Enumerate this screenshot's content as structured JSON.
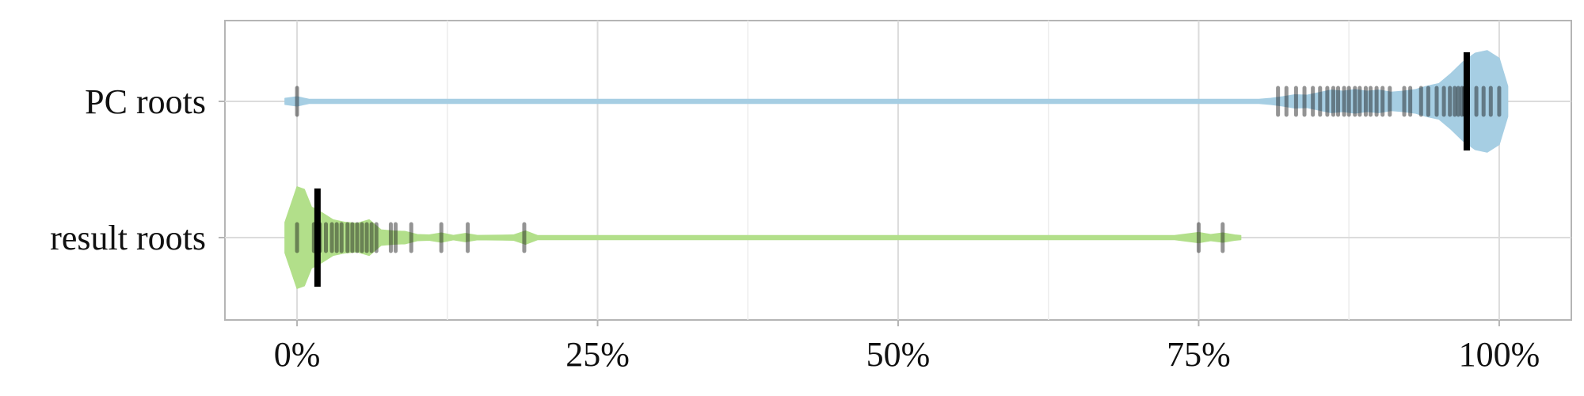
{
  "chart_data": {
    "type": "violin",
    "categories": [
      "PC roots",
      "result roots"
    ],
    "x_ticks": [
      "0%",
      "25%",
      "50%",
      "75%",
      "100%"
    ],
    "x_tick_values": [
      0,
      25,
      50,
      75,
      100
    ],
    "xlim": [
      -6,
      106
    ],
    "grid": true,
    "legend": "none",
    "xlabel": "",
    "ylabel": "",
    "title": "",
    "series": [
      {
        "category": "PC roots",
        "color": "#a6cee3",
        "median": 97.3,
        "range": [
          -1,
          100.7
        ],
        "density": [
          [
            -1,
            0.06
          ],
          [
            0,
            0.09
          ],
          [
            1,
            0.03
          ],
          [
            2,
            0.02
          ],
          [
            80,
            0.02
          ],
          [
            81,
            0.06
          ],
          [
            82,
            0.09
          ],
          [
            83,
            0.13
          ],
          [
            84,
            0.12
          ],
          [
            85,
            0.17
          ],
          [
            86,
            0.22
          ],
          [
            87,
            0.2
          ],
          [
            88,
            0.23
          ],
          [
            89,
            0.2
          ],
          [
            90,
            0.22
          ],
          [
            91,
            0.18
          ],
          [
            92,
            0.2
          ],
          [
            93,
            0.23
          ],
          [
            94,
            0.3
          ],
          [
            95,
            0.35
          ],
          [
            96,
            0.55
          ],
          [
            97,
            0.78
          ],
          [
            98,
            0.95
          ],
          [
            99,
            1.0
          ],
          [
            100,
            0.85
          ],
          [
            100.7,
            0.3
          ]
        ],
        "points": [
          0.0,
          81.6,
          82.3,
          83.1,
          83.8,
          84.5,
          85.1,
          85.7,
          86.2,
          86.6,
          87.1,
          87.5,
          88.0,
          88.4,
          88.9,
          89.3,
          89.8,
          90.3,
          90.9,
          92.1,
          92.6,
          93.5,
          94.1,
          94.8,
          95.4,
          95.9,
          96.3,
          96.6,
          96.9,
          97.1,
          97.4,
          98.1,
          98.7,
          99.3,
          100.0
        ]
      },
      {
        "category": "result roots",
        "color": "#b2df8a",
        "median": 1.7,
        "range": [
          -1,
          78.5
        ],
        "density": [
          [
            -1,
            0.3
          ],
          [
            0,
            1.0
          ],
          [
            0.6,
            0.95
          ],
          [
            1.2,
            0.6
          ],
          [
            2,
            0.5
          ],
          [
            3,
            0.35
          ],
          [
            4,
            0.3
          ],
          [
            5,
            0.28
          ],
          [
            6,
            0.35
          ],
          [
            7,
            0.15
          ],
          [
            8,
            0.13
          ],
          [
            9,
            0.12
          ],
          [
            10,
            0.06
          ],
          [
            11,
            0.05
          ],
          [
            12,
            0.09
          ],
          [
            13,
            0.04
          ],
          [
            14,
            0.08
          ],
          [
            15,
            0.04
          ],
          [
            18,
            0.05
          ],
          [
            19,
            0.13
          ],
          [
            20,
            0.03
          ],
          [
            22,
            0.02
          ],
          [
            73,
            0.02
          ],
          [
            75,
            0.1
          ],
          [
            76,
            0.06
          ],
          [
            77,
            0.09
          ],
          [
            78,
            0.05
          ],
          [
            78.5,
            0.02
          ]
        ],
        "points": [
          0.0,
          1.4,
          1.9,
          2.4,
          2.9,
          3.3,
          3.7,
          4.2,
          4.6,
          5.0,
          5.4,
          5.8,
          6.2,
          6.6,
          7.8,
          8.2,
          9.5,
          12.0,
          14.2,
          18.9,
          75.0,
          77.0
        ]
      }
    ]
  }
}
